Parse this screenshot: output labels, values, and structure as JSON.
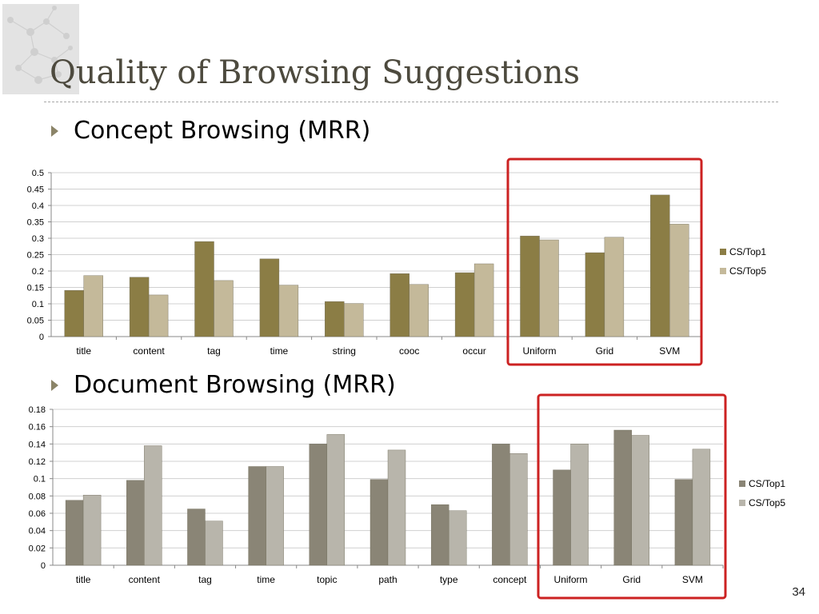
{
  "slide": {
    "title": "Quality of Browsing Suggestions",
    "page_number": "34",
    "bullets": [
      {
        "text": "Concept Browsing (MRR)"
      },
      {
        "text": "Document Browsing (MRR)"
      }
    ]
  },
  "colors": {
    "concept_top1": "#8b7d45",
    "concept_top5": "#c4b99a",
    "document_top1": "#8a8576",
    "document_top5": "#b8b5ab",
    "highlight_box": "#cc2222",
    "gridline": "#d0d0d0"
  },
  "chart_data": [
    {
      "type": "bar",
      "categories": [
        "title",
        "content",
        "tag",
        "time",
        "string",
        "cooc",
        "occur",
        "Uniform",
        "Grid",
        "SVM"
      ],
      "series": [
        {
          "name": "CS/Top1",
          "values": [
            0.141,
            0.181,
            0.29,
            0.237,
            0.107,
            0.192,
            0.195,
            0.307,
            0.256,
            0.432
          ]
        },
        {
          "name": "CS/Top5",
          "values": [
            0.186,
            0.127,
            0.171,
            0.157,
            0.101,
            0.159,
            0.222,
            0.295,
            0.303,
            0.343
          ]
        }
      ],
      "title": "",
      "xlabel": "",
      "ylabel": "",
      "ylim": [
        0,
        0.5
      ],
      "yticks": [
        "0",
        "0.05",
        "0.1",
        "0.15",
        "0.2",
        "0.25",
        "0.3",
        "0.35",
        "0.4",
        "0.45",
        "0.5"
      ],
      "grid": true,
      "legend": "right",
      "highlight": [
        "Uniform",
        "Grid",
        "SVM"
      ]
    },
    {
      "type": "bar",
      "categories": [
        "title",
        "content",
        "tag",
        "time",
        "topic",
        "path",
        "type",
        "concept",
        "Uniform",
        "Grid",
        "SVM"
      ],
      "series": [
        {
          "name": "CS/Top1",
          "values": [
            0.075,
            0.098,
            0.065,
            0.114,
            0.14,
            0.099,
            0.07,
            0.14,
            0.11,
            0.156,
            0.099
          ]
        },
        {
          "name": "CS/Top5",
          "values": [
            0.081,
            0.138,
            0.051,
            0.114,
            0.151,
            0.133,
            0.063,
            0.129,
            0.14,
            0.15,
            0.134
          ]
        }
      ],
      "title": "",
      "xlabel": "",
      "ylabel": "",
      "ylim": [
        0,
        0.18
      ],
      "yticks": [
        "0",
        "0.02",
        "0.04",
        "0.06",
        "0.08",
        "0.1",
        "0.12",
        "0.14",
        "0.16",
        "0.18"
      ],
      "grid": true,
      "legend": "right",
      "highlight": [
        "Uniform",
        "Grid",
        "SVM"
      ]
    }
  ]
}
